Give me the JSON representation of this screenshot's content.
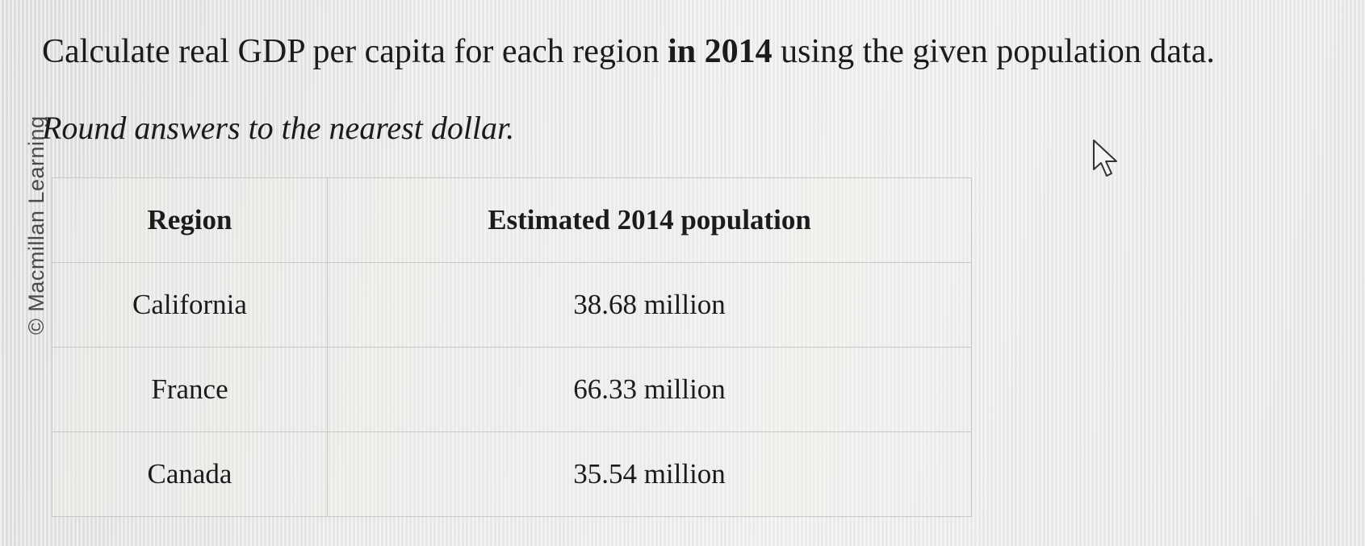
{
  "watermark": "© Macmillan Learning",
  "question": {
    "prefix": "Calculate real GDP per capita for each region ",
    "emphasis": "in 2014",
    "suffix": " using the given population data."
  },
  "instruction": "Round answers to the nearest dollar.",
  "table": {
    "headers": [
      "Region",
      "Estimated 2014 population"
    ],
    "rows": [
      [
        "California",
        "38.68 million"
      ],
      [
        "France",
        "66.33 million"
      ],
      [
        "Canada",
        "35.54 million"
      ]
    ]
  },
  "cursor_icon": "arrow-pointer-icon"
}
